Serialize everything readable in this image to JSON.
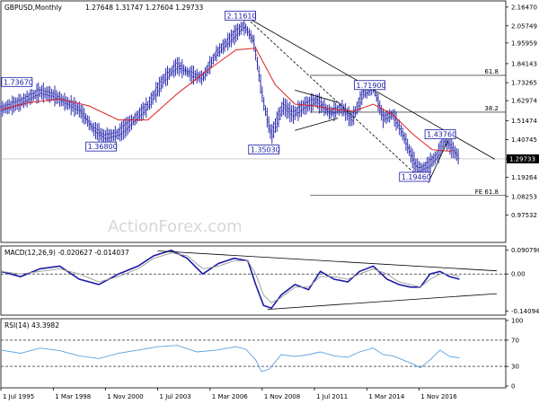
{
  "chart_data": [
    {
      "type": "ohlc",
      "title": "GBPUSD,Monthly",
      "ohlc_readout": "1.27648 1.31747 1.27604 1.29733",
      "ylim": [
        0.82,
        2.2
      ],
      "y_ticks": [
        "2.16470",
        "2.05749",
        "1.95959",
        "1.84143",
        "1.73265",
        "1.62974",
        "1.51474",
        "1.40745",
        "1.29733",
        "1.19264",
        "1.08253",
        "0.97532"
      ],
      "y_tick_values": [
        2.1647,
        2.05749,
        1.95959,
        1.84143,
        1.73265,
        1.62974,
        1.51474,
        1.40745,
        1.29733,
        1.19264,
        1.08253,
        0.97532
      ],
      "last_price_label": "1.29733",
      "watermark": "ActionForex.com",
      "price_series": {
        "x": [
          1995.5,
          1996.5,
          1997.5,
          1998.2,
          1998.8,
          1999.5,
          2000.2,
          2000.8,
          2001.5,
          2002.3,
          2003.0,
          2003.8,
          2004.5,
          2005.2,
          2005.8,
          2006.5,
          2007.2,
          2007.9,
          2008.4,
          2008.9,
          2009.3,
          2009.9,
          2010.4,
          2011.0,
          2011.6,
          2012.3,
          2012.9,
          2013.4,
          2014.0,
          2014.5,
          2015.0,
          2015.5,
          2016.0,
          2016.5,
          2016.8,
          2017.3,
          2017.8,
          2018.1,
          2018.5,
          2018.9
        ],
        "y": [
          1.58,
          1.62,
          1.68,
          1.66,
          1.62,
          1.58,
          1.47,
          1.42,
          1.44,
          1.52,
          1.6,
          1.75,
          1.83,
          1.78,
          1.76,
          1.9,
          1.98,
          2.06,
          1.97,
          1.62,
          1.43,
          1.6,
          1.55,
          1.6,
          1.63,
          1.56,
          1.59,
          1.52,
          1.67,
          1.71,
          1.53,
          1.55,
          1.44,
          1.3,
          1.23,
          1.26,
          1.32,
          1.41,
          1.36,
          1.3
        ]
      },
      "moving_average": {
        "color": "#e02020",
        "x": [
          1995.5,
          1997.0,
          1998.5,
          2000.0,
          2001.5,
          2003.0,
          2004.5,
          2006.0,
          2007.5,
          2008.5,
          2009.5,
          2010.5,
          2011.5,
          2012.5,
          2013.5,
          2014.5,
          2015.5,
          2016.5,
          2017.5,
          2018.5
        ],
        "y": [
          1.58,
          1.62,
          1.64,
          1.6,
          1.52,
          1.52,
          1.67,
          1.8,
          1.92,
          1.93,
          1.72,
          1.61,
          1.6,
          1.58,
          1.57,
          1.61,
          1.55,
          1.44,
          1.35,
          1.34
        ]
      },
      "fib_levels": [
        {
          "label": "61.8",
          "value": 1.7745
        },
        {
          "label": "38.2",
          "value": 1.564
        },
        {
          "label": "FE 61.8",
          "value": 1.088
        }
      ],
      "price_labels": [
        {
          "text": "2.11610",
          "x": 2007.9,
          "y": 2.1161
        },
        {
          "text": "1.73670",
          "x": 1996.5,
          "y": 1.7367
        },
        {
          "text": "1.36800",
          "x": 2000.8,
          "y": 1.368
        },
        {
          "text": "1.35030",
          "x": 2009.1,
          "y": 1.3503
        },
        {
          "text": "1.71900",
          "x": 2014.5,
          "y": 1.719
        },
        {
          "text": "1.43760",
          "x": 2018.1,
          "y": 1.4376
        },
        {
          "text": "1.19460",
          "x": 2016.8,
          "y": 1.1946
        }
      ],
      "trendlines": [
        {
          "from": [
            2007.9,
            2.1161
          ],
          "to": [
            2020.7,
            1.295
          ]
        },
        {
          "from": [
            2007.9,
            2.1161
          ],
          "to": [
            2016.8,
            1.1946
          ]
        },
        {
          "from": [
            2010.5,
            1.69
          ],
          "to": [
            2012.7,
            1.62
          ]
        },
        {
          "from": [
            2010.5,
            1.46
          ],
          "to": [
            2012.7,
            1.53
          ]
        },
        {
          "from": [
            2017.3,
            1.16
          ],
          "to": [
            2018.3,
            1.4
          ]
        }
      ]
    },
    {
      "type": "line",
      "title": "MACD(12,26,9) -0.020627 -0.014037",
      "ylim": [
        -0.15,
        0.1
      ],
      "y_ticks": [
        "0.090798",
        "0.00",
        "-0.14094"
      ],
      "y_tick_values": [
        0.090798,
        0.0,
        -0.14094
      ],
      "series": [
        {
          "color": "#1a1aa6",
          "x": [
            1995.5,
            1996.5,
            1997.5,
            1998.5,
            1999.5,
            2000.5,
            2001.5,
            2002.5,
            2003.3,
            2004.2,
            2005.0,
            2005.8,
            2006.6,
            2007.4,
            2008.1,
            2008.5,
            2008.9,
            2009.3,
            2009.8,
            2010.5,
            2011.2,
            2011.8,
            2012.5,
            2013.2,
            2013.8,
            2014.5,
            2015.2,
            2015.8,
            2016.4,
            2016.9,
            2017.4,
            2017.9,
            2018.4,
            2018.9
          ],
          "y": [
            0.01,
            -0.01,
            0.02,
            0.03,
            -0.02,
            -0.04,
            0.0,
            0.03,
            0.07,
            0.09,
            0.06,
            0.0,
            0.04,
            0.06,
            0.05,
            -0.04,
            -0.12,
            -0.13,
            -0.08,
            -0.04,
            -0.06,
            0.01,
            -0.02,
            -0.03,
            0.01,
            0.03,
            -0.02,
            -0.04,
            -0.05,
            -0.05,
            0.0,
            0.01,
            -0.01,
            -0.02
          ]
        },
        {
          "color": "#999999",
          "x": [
            1995.5,
            1996.5,
            1997.5,
            1998.5,
            1999.5,
            2000.5,
            2001.5,
            2002.5,
            2003.3,
            2004.2,
            2005.0,
            2005.8,
            2006.6,
            2007.4,
            2008.1,
            2008.5,
            2008.9,
            2009.3,
            2009.8,
            2010.5,
            2011.2,
            2011.8,
            2012.5,
            2013.2,
            2013.8,
            2014.5,
            2015.2,
            2015.8,
            2016.4,
            2016.9,
            2017.4,
            2017.9,
            2018.4,
            2018.9
          ],
          "y": [
            0.01,
            0.0,
            0.01,
            0.02,
            0.0,
            -0.03,
            -0.01,
            0.02,
            0.06,
            0.08,
            0.07,
            0.02,
            0.03,
            0.05,
            0.05,
            0.0,
            -0.08,
            -0.11,
            -0.09,
            -0.05,
            -0.05,
            -0.01,
            -0.01,
            -0.02,
            0.0,
            0.02,
            0.0,
            -0.03,
            -0.04,
            -0.05,
            -0.02,
            0.0,
            0.0,
            -0.01
          ]
        }
      ],
      "trendlines": [
        {
          "from": [
            2003.5,
            0.088
          ],
          "to": [
            2020.8,
            0.012
          ]
        },
        {
          "from": [
            2009.1,
            -0.135
          ],
          "to": [
            2020.8,
            -0.075
          ]
        }
      ]
    },
    {
      "type": "line",
      "title": "RSI(14) 43.3982",
      "ylim": [
        0,
        100
      ],
      "y_ticks": [
        "100",
        "70",
        "30",
        "0"
      ],
      "y_tick_values": [
        100,
        70,
        30,
        0
      ],
      "series": [
        {
          "color": "#5aa0e0",
          "x": [
            1995.5,
            1996.5,
            1997.5,
            1998.5,
            1999.5,
            2000.5,
            2001.5,
            2002.5,
            2003.5,
            2004.5,
            2005.5,
            2006.5,
            2007.5,
            2008.0,
            2008.5,
            2008.8,
            2009.2,
            2009.8,
            2010.5,
            2011.2,
            2011.8,
            2012.5,
            2013.2,
            2013.8,
            2014.5,
            2015.0,
            2015.5,
            2016.0,
            2016.5,
            2016.9,
            2017.4,
            2017.9,
            2018.4,
            2018.9
          ],
          "y": [
            55,
            50,
            58,
            54,
            46,
            42,
            50,
            55,
            60,
            62,
            52,
            55,
            60,
            56,
            40,
            22,
            26,
            48,
            45,
            48,
            52,
            46,
            44,
            52,
            58,
            48,
            46,
            40,
            34,
            28,
            40,
            55,
            45,
            43
          ]
        }
      ],
      "levels": [
        70,
        30
      ]
    }
  ],
  "x_axis": {
    "tick_labels": [
      "1 Jul 1995",
      "1 Mar 1998",
      "1 Nov 2000",
      "1 Jul 2003",
      "1 Mar 2006",
      "1 Nov 2008",
      "1 Jul 2011",
      "1 Mar 2014",
      "1 Nov 2016"
    ],
    "tick_values": [
      1995.5,
      1998.17,
      2000.83,
      2003.5,
      2006.17,
      2008.83,
      2011.5,
      2014.17,
      2016.83
    ],
    "range": [
      1995.5,
      2020.8
    ]
  }
}
